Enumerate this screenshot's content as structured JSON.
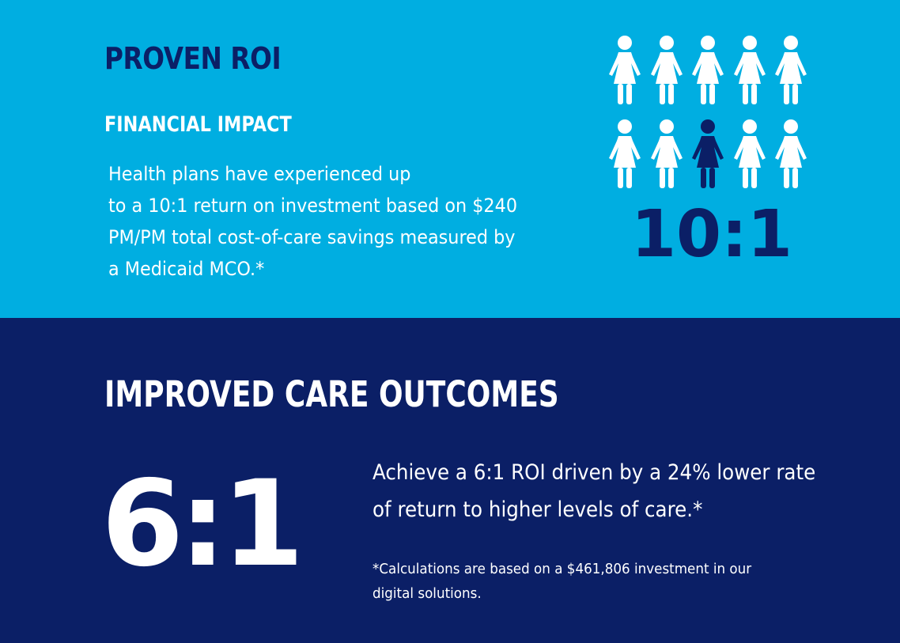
{
  "proven": {
    "title": "PROVEN ROI",
    "subtitle": "FINANCIAL IMPACT",
    "body_lines": [
      " Health plans have experienced up",
      "to a 10:1 return on investment based on $240",
      "PM/PM total cost-of-care savings measured by",
      "a Medicaid MCO.*"
    ],
    "ratio": "10:1",
    "pictogram": {
      "icon": "person-icon",
      "total": 10,
      "highlighted_index": 7,
      "colors": {
        "default": "#ffffff",
        "highlight": "#0b1f66"
      }
    }
  },
  "outcomes": {
    "title": "IMPROVED CARE OUTCOMES",
    "ratio": "6:1",
    "body_lines": [
      "Achieve a 6:1 ROI driven by a 24% lower rate",
      "of return to higher levels of care.*"
    ],
    "footnote_lines": [
      "*Calculations are based on a $461,806 investment in our",
      "digital solutions."
    ]
  },
  "colors": {
    "top_background": "#00aee1",
    "bottom_background": "#0b1f66",
    "dark_text": "#0b1f66",
    "light_text": "#ffffff"
  }
}
